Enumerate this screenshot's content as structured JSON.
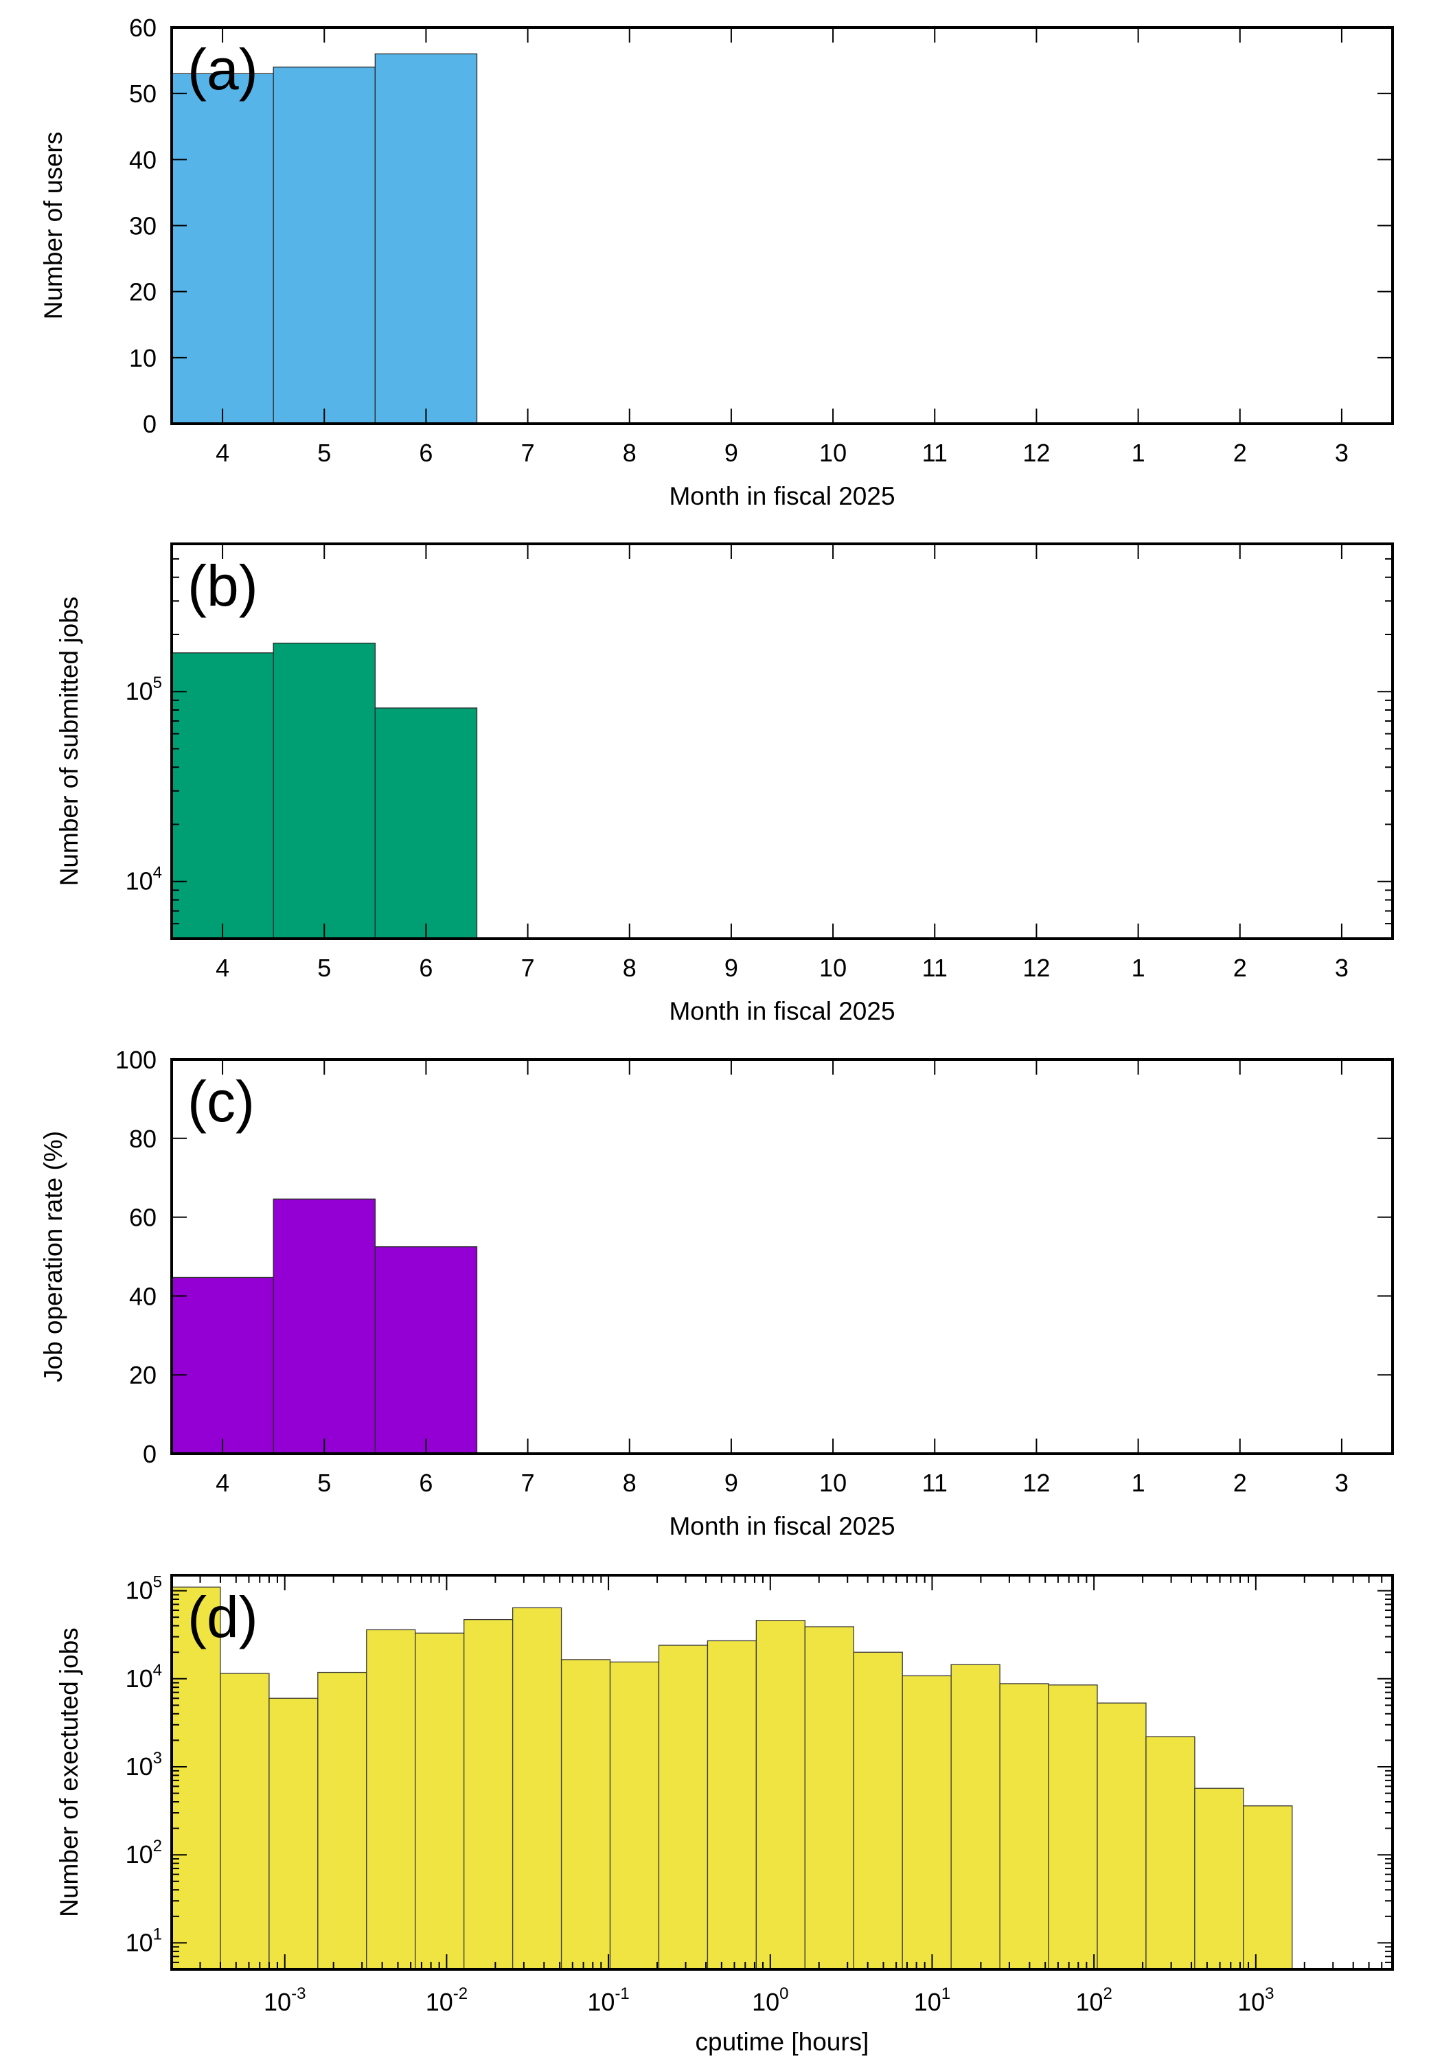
{
  "chart_data": [
    {
      "panel_tag": "(a)",
      "type": "bar",
      "xlabel": "Month in fiscal 2025",
      "ylabel": "Number of users",
      "categories": [
        "4",
        "5",
        "6",
        "7",
        "8",
        "9",
        "10",
        "11",
        "12",
        "1",
        "2",
        "3"
      ],
      "values": [
        53,
        54,
        56,
        null,
        null,
        null,
        null,
        null,
        null,
        null,
        null,
        null
      ],
      "yscale": "linear",
      "ylim": [
        0,
        60
      ],
      "yticks": [
        0,
        10,
        20,
        30,
        40,
        50,
        60
      ],
      "color": "#56b4e9",
      "grid": false,
      "legend": "none"
    },
    {
      "panel_tag": "(b)",
      "type": "bar",
      "xlabel": "Month in fiscal 2025",
      "ylabel": "Number of submitted jobs",
      "categories": [
        "4",
        "5",
        "6",
        "7",
        "8",
        "9",
        "10",
        "11",
        "12",
        "1",
        "2",
        "3"
      ],
      "values": [
        160000,
        180000,
        82000,
        null,
        null,
        null,
        null,
        null,
        null,
        null,
        null,
        null
      ],
      "yscale": "log",
      "ylim": [
        5000,
        600000
      ],
      "yticks": [
        10000,
        100000
      ],
      "color": "#009e73",
      "grid": false,
      "legend": "none"
    },
    {
      "panel_tag": "(c)",
      "type": "bar",
      "xlabel": "Month in fiscal 2025",
      "ylabel": "Job operation rate (%)",
      "categories": [
        "4",
        "5",
        "6",
        "7",
        "8",
        "9",
        "10",
        "11",
        "12",
        "1",
        "2",
        "3"
      ],
      "values": [
        44.7,
        64.6,
        52.5,
        null,
        null,
        null,
        null,
        null,
        null,
        null,
        null,
        null
      ],
      "yscale": "linear",
      "ylim": [
        0,
        100
      ],
      "yticks": [
        0,
        20,
        40,
        60,
        80,
        100
      ],
      "color": "#9400d3",
      "grid": false,
      "legend": "none"
    },
    {
      "panel_tag": "(d)",
      "type": "bar",
      "xlabel": "cputime [hours]",
      "ylabel": "Number of exectuted jobs",
      "xscale": "log",
      "yscale": "log",
      "xlim": [
        0.0002,
        7000
      ],
      "ylim": [
        5,
        150000
      ],
      "xticks": [
        0.001,
        0.01,
        0.1,
        1,
        10,
        100,
        1000
      ],
      "yticks": [
        10,
        100,
        1000,
        10000,
        100000
      ],
      "bin_edges": [
        0.0002,
        0.0004,
        0.0008,
        0.0016,
        0.0032,
        0.0064,
        0.0128,
        0.0256,
        0.0512,
        0.1024,
        0.2048,
        0.4096,
        0.8192,
        1.6384,
        3.2768,
        6.5536,
        13.1072,
        26.2144,
        52.4288,
        104.8576,
        209.7152,
        419.4304,
        838.8608,
        1677.7216
      ],
      "values": [
        110000,
        11500,
        6000,
        11800,
        36000,
        33000,
        47000,
        64000,
        16500,
        15500,
        24000,
        27000,
        46000,
        39000,
        20000,
        10800,
        14500,
        8800,
        8500,
        5300,
        2200,
        570,
        360
      ],
      "color": "#f0e442",
      "grid": false,
      "legend": "none"
    }
  ]
}
